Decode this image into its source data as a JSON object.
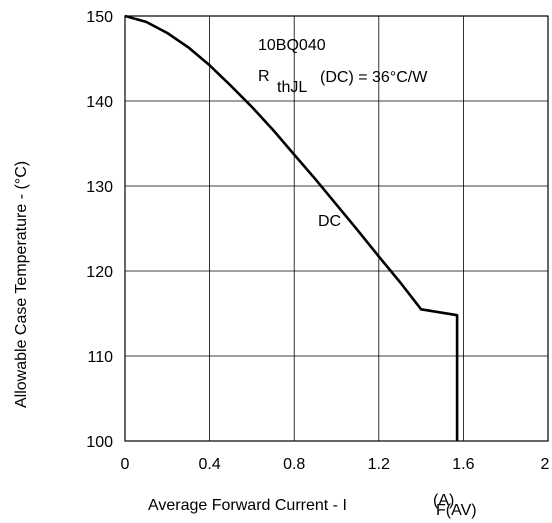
{
  "chart_data": {
    "type": "line",
    "title": "",
    "xlabel": "Average Forward Current - I",
    "xlabel_sub": "F(AV)",
    "xlabel_unit": "(A)",
    "ylabel": "Allowable Case Temperature - (°C)",
    "xlim": [
      0,
      2
    ],
    "ylim": [
      100,
      150
    ],
    "xticks": [
      "0",
      "0.4",
      "0.8",
      "1.2",
      "1.6",
      "2"
    ],
    "yticks": [
      "100",
      "110",
      "120",
      "130",
      "140",
      "150"
    ],
    "grid": true,
    "annotations": {
      "device": "10BQ040",
      "rth_prefix": "R",
      "rth_sub": "thJL",
      "rth_suffix": "(DC) = 36°C/W",
      "curve_label": "DC"
    },
    "series": [
      {
        "name": "DC",
        "x": [
          0,
          0.1,
          0.2,
          0.3,
          0.4,
          0.5,
          0.6,
          0.7,
          0.8,
          0.9,
          1.0,
          1.1,
          1.2,
          1.3,
          1.4,
          1.5,
          1.57,
          1.57,
          1.57
        ],
        "y": [
          150,
          149.3,
          148.0,
          146.3,
          144.2,
          141.8,
          139.3,
          136.6,
          133.7,
          130.8,
          127.8,
          124.8,
          121.7,
          118.7,
          115.5,
          112.6,
          114.8,
          107.0,
          100
        ]
      }
    ]
  }
}
